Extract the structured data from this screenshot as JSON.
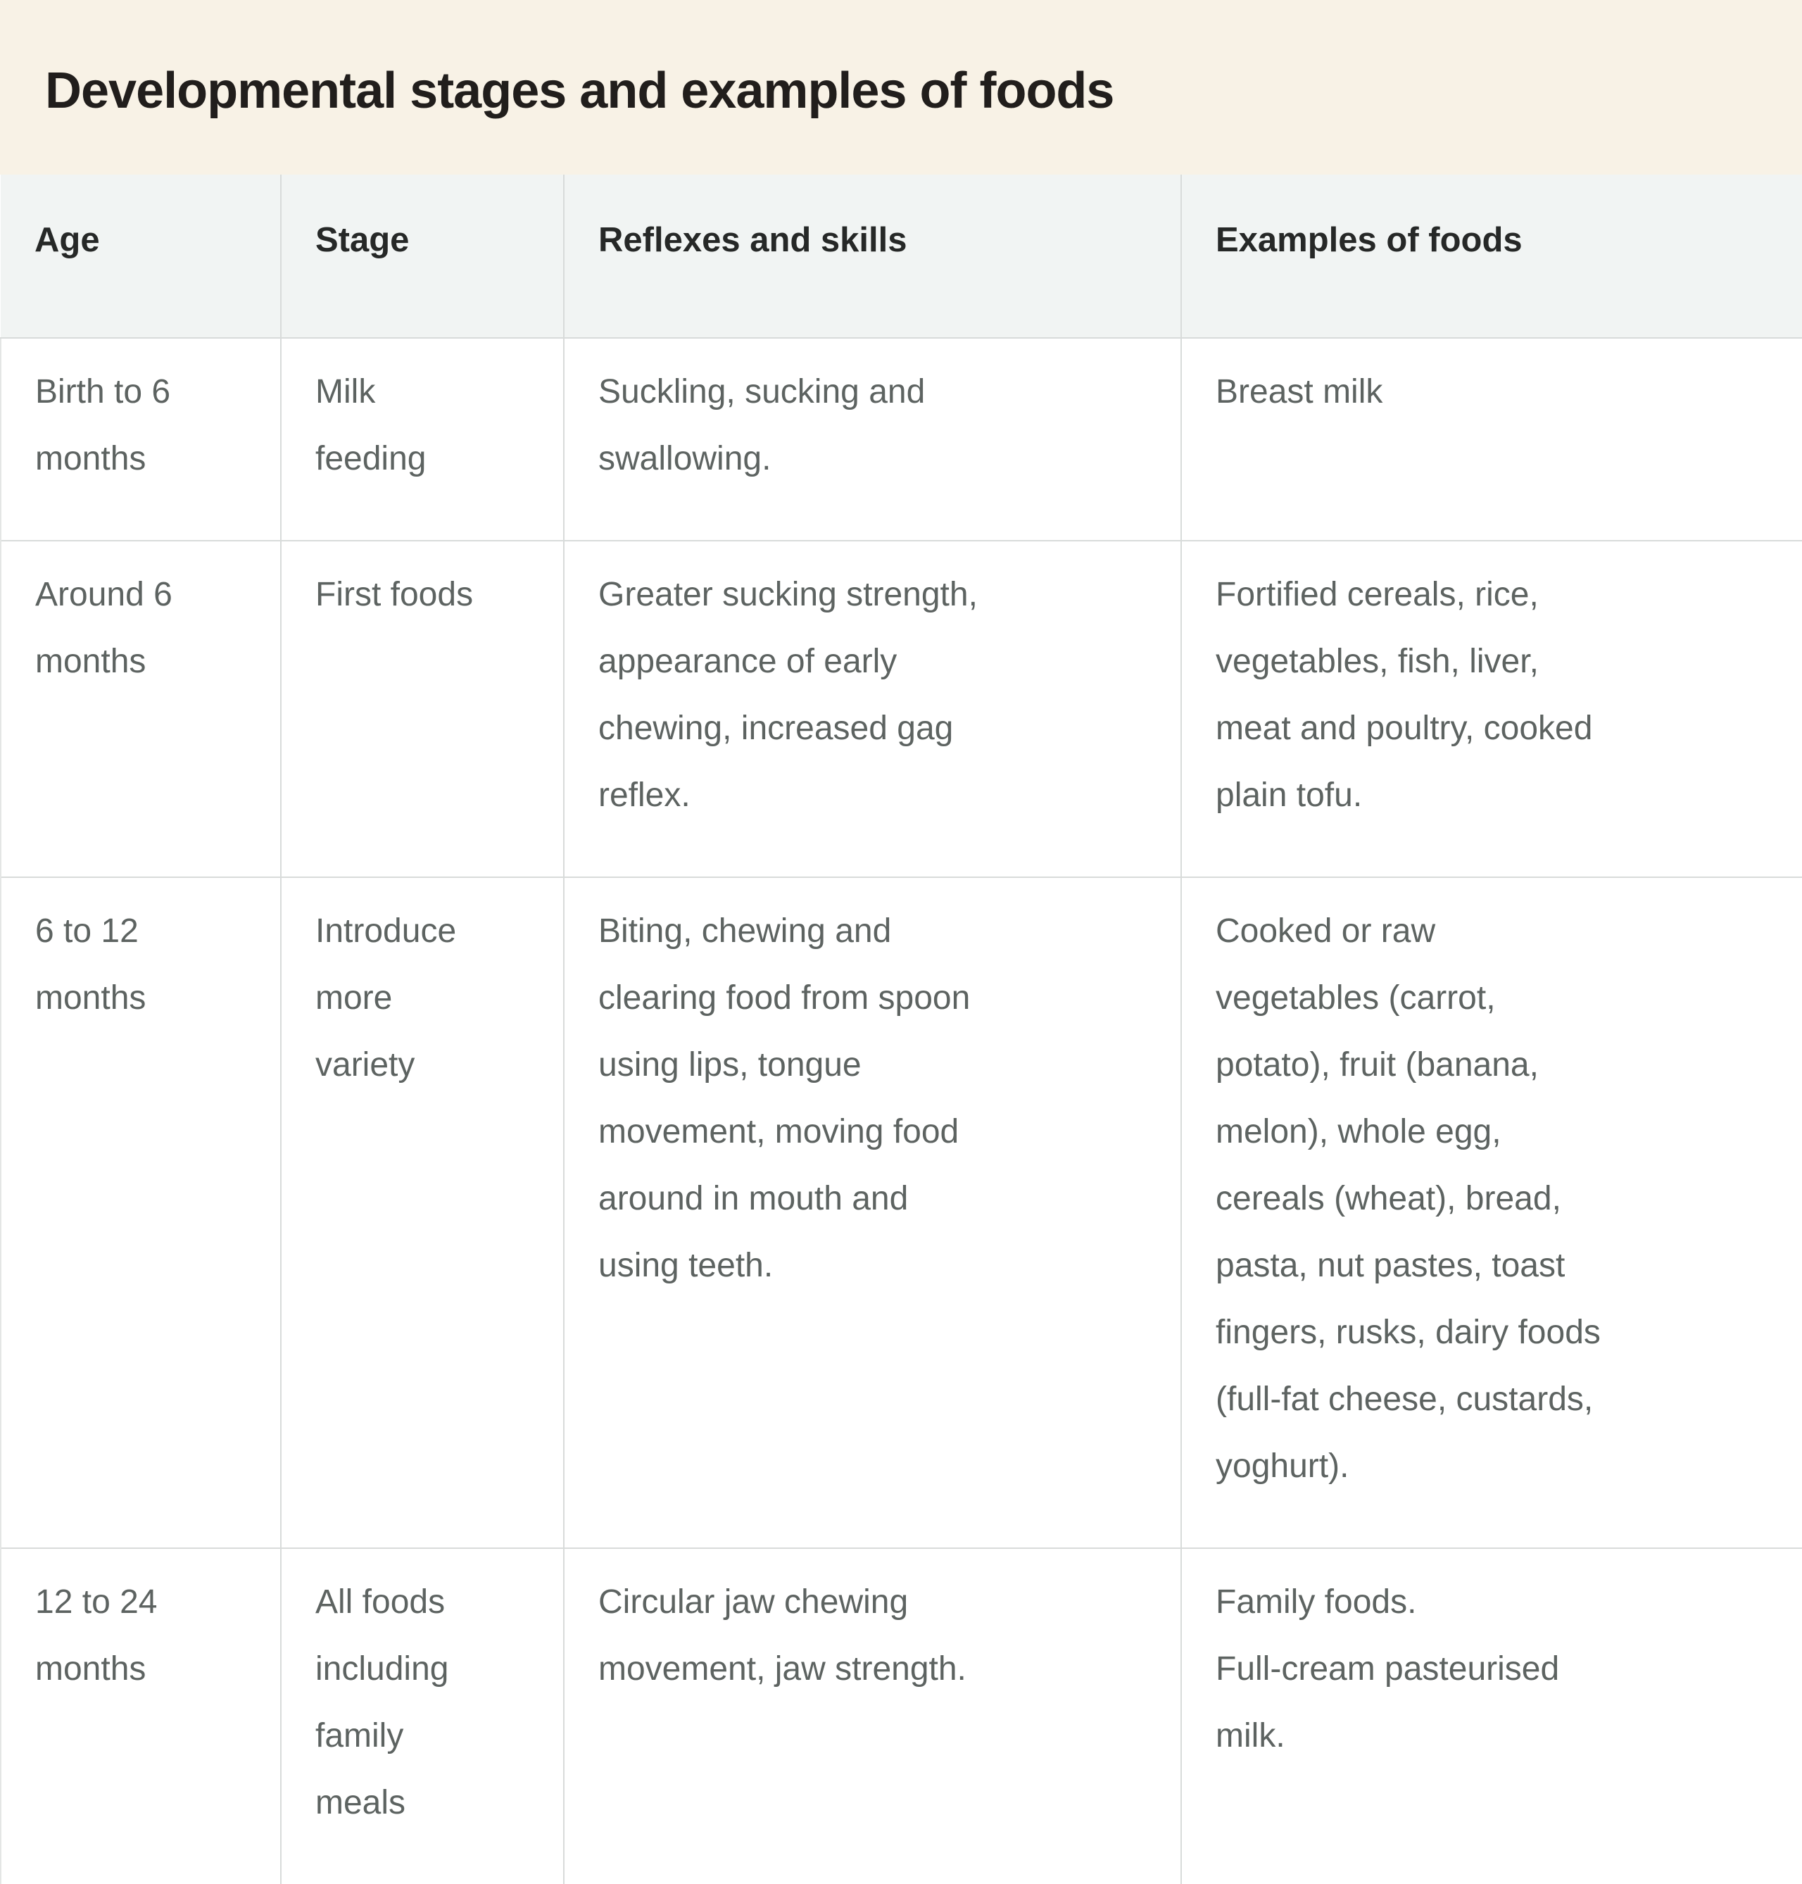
{
  "title": "Developmental stages and examples of foods",
  "table": {
    "headers": [
      "Age",
      "Stage",
      "Reflexes and skills",
      "Examples of foods"
    ],
    "rows": [
      [
        "Birth to 6\nmonths",
        "Milk\nfeeding",
        "Suckling, sucking and\nswallowing.",
        "Breast milk"
      ],
      [
        "Around 6\nmonths",
        "First foods",
        "Greater sucking strength,\nappearance of early\nchewing, increased gag\nreflex.",
        "Fortified cereals, rice,\nvegetables, fish, liver,\nmeat and poultry, cooked\nplain tofu."
      ],
      [
        "6 to 12\nmonths",
        "Introduce\nmore\nvariety",
        "Biting, chewing and\nclearing food from spoon\nusing lips, tongue\nmovement, moving food\naround in mouth and\nusing teeth.",
        "Cooked or raw\nvegetables (carrot,\npotato), fruit (banana,\nmelon), whole egg,\ncereals (wheat), bread,\npasta, nut pastes, toast\nfingers, rusks, dairy foods\n(full-fat cheese, custards,\nyoghurt)."
      ],
      [
        "12 to 24\nmonths",
        "All foods\nincluding\nfamily\nmeals",
        "Circular jaw chewing\nmovement, jaw strength.",
        "Family foods.\nFull-cream pasteurised\nmilk."
      ]
    ]
  },
  "colors": {
    "banner_background": "#f8f2e6",
    "title_text": "#211e1c",
    "header_background": "#f1f4f3",
    "header_text": "#262827",
    "body_text": "#5d6361",
    "divider": "#d8dbda",
    "row_background": "#ffffff"
  }
}
